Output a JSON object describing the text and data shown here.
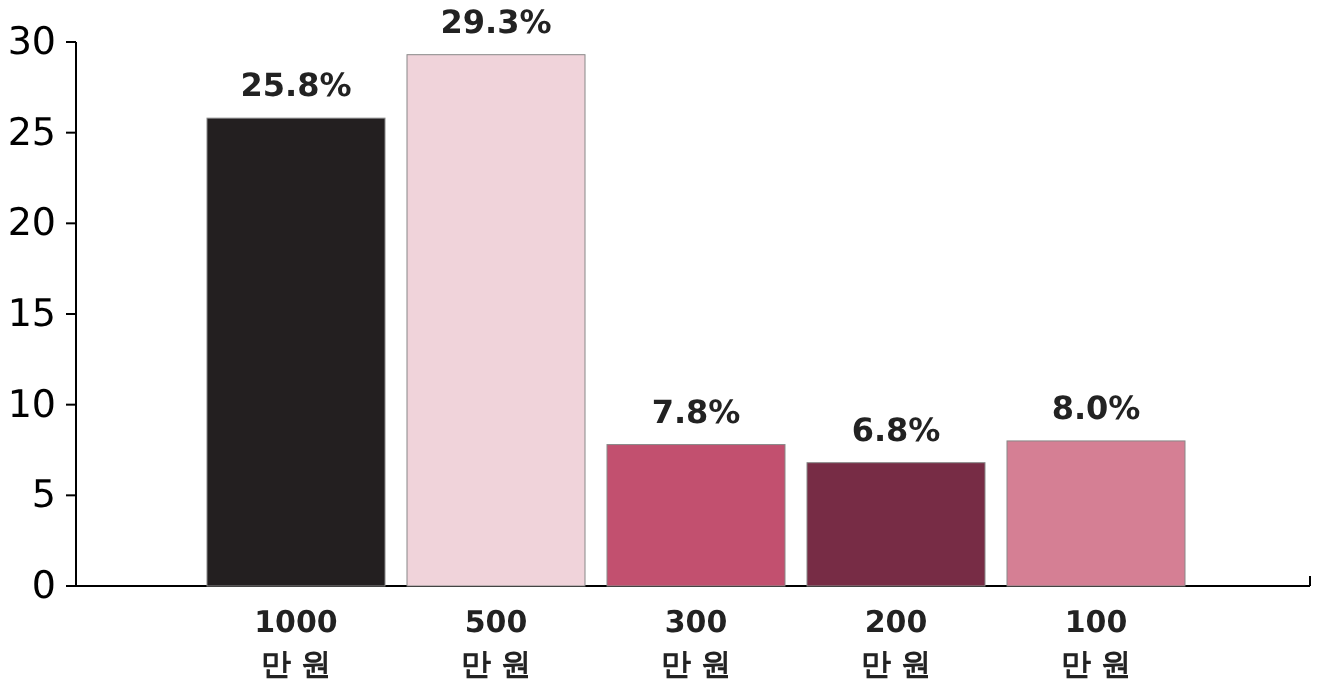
{
  "chart_data": {
    "type": "bar",
    "categories": [
      "1000\n만 원",
      "500\n만 원",
      "300\n만 원",
      "200\n만 원",
      "100\n만 원"
    ],
    "values": [
      25.8,
      29.3,
      7.8,
      6.8,
      8.0
    ],
    "value_labels": [
      "25.8%",
      "29.3%",
      "7.8%",
      "6.8%",
      "8.0%"
    ],
    "colors": [
      "#231f20",
      "#f0d3da",
      "#c2506f",
      "#772c45",
      "#d57f94"
    ],
    "ylim": [
      0,
      30
    ],
    "yticks": [
      0,
      5,
      10,
      15,
      20,
      25,
      30
    ],
    "grid": false
  }
}
